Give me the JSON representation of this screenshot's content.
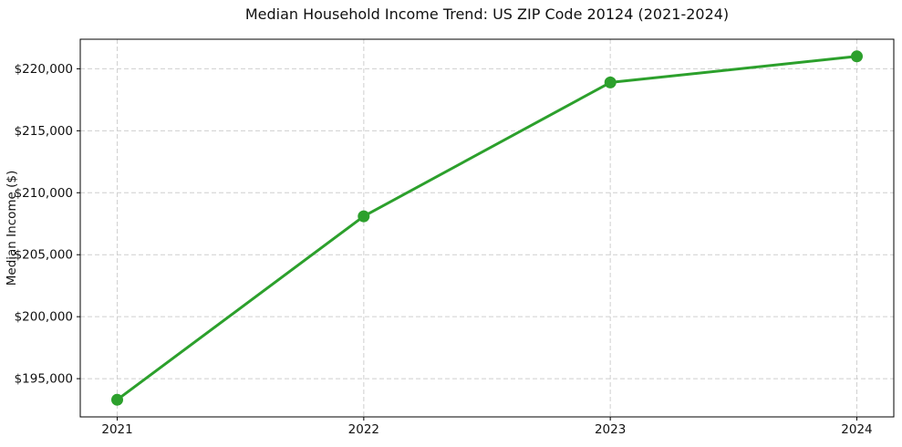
{
  "page": {
    "background": "#ffffff"
  },
  "chart_data": {
    "type": "line",
    "title": "Median Household Income Trend: US ZIP Code 20124 (2021-2024)",
    "xlabel": "",
    "ylabel": "Median Income ($)",
    "x": [
      2021,
      2022,
      2023,
      2024
    ],
    "x_tick_labels": [
      "2021",
      "2022",
      "2023",
      "2024"
    ],
    "series": [
      {
        "name": "Median Household Income",
        "values": [
          193300,
          208100,
          218900,
          221000
        ],
        "color": "#2ca02c",
        "marker": "circle",
        "marker_radius": 6.5,
        "line_width": 3
      }
    ],
    "y_ticks": [
      195000,
      200000,
      205000,
      210000,
      215000,
      220000
    ],
    "y_tick_labels": [
      "$195,000",
      "$200,000",
      "$205,000",
      "$210,000",
      "$215,000",
      "$220,000"
    ],
    "ylim": [
      191915,
      222385
    ],
    "xlim": [
      2020.85,
      2024.15
    ],
    "grid": true,
    "grid_style": "dashed",
    "grid_color": "#cfcfcf",
    "spine_color": "#000000",
    "tick_color": "#000000",
    "text_color": "#111111",
    "legend": "none"
  }
}
